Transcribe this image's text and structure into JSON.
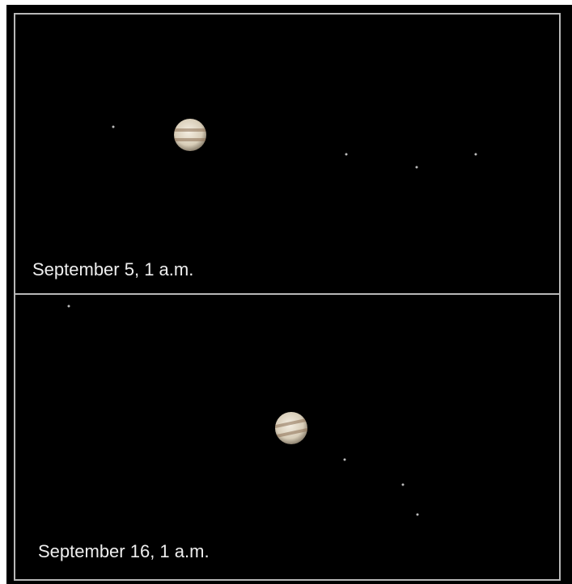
{
  "panels": [
    {
      "label": "September 5, 1 a.m."
    },
    {
      "label": "September 16, 1 a.m."
    }
  ]
}
